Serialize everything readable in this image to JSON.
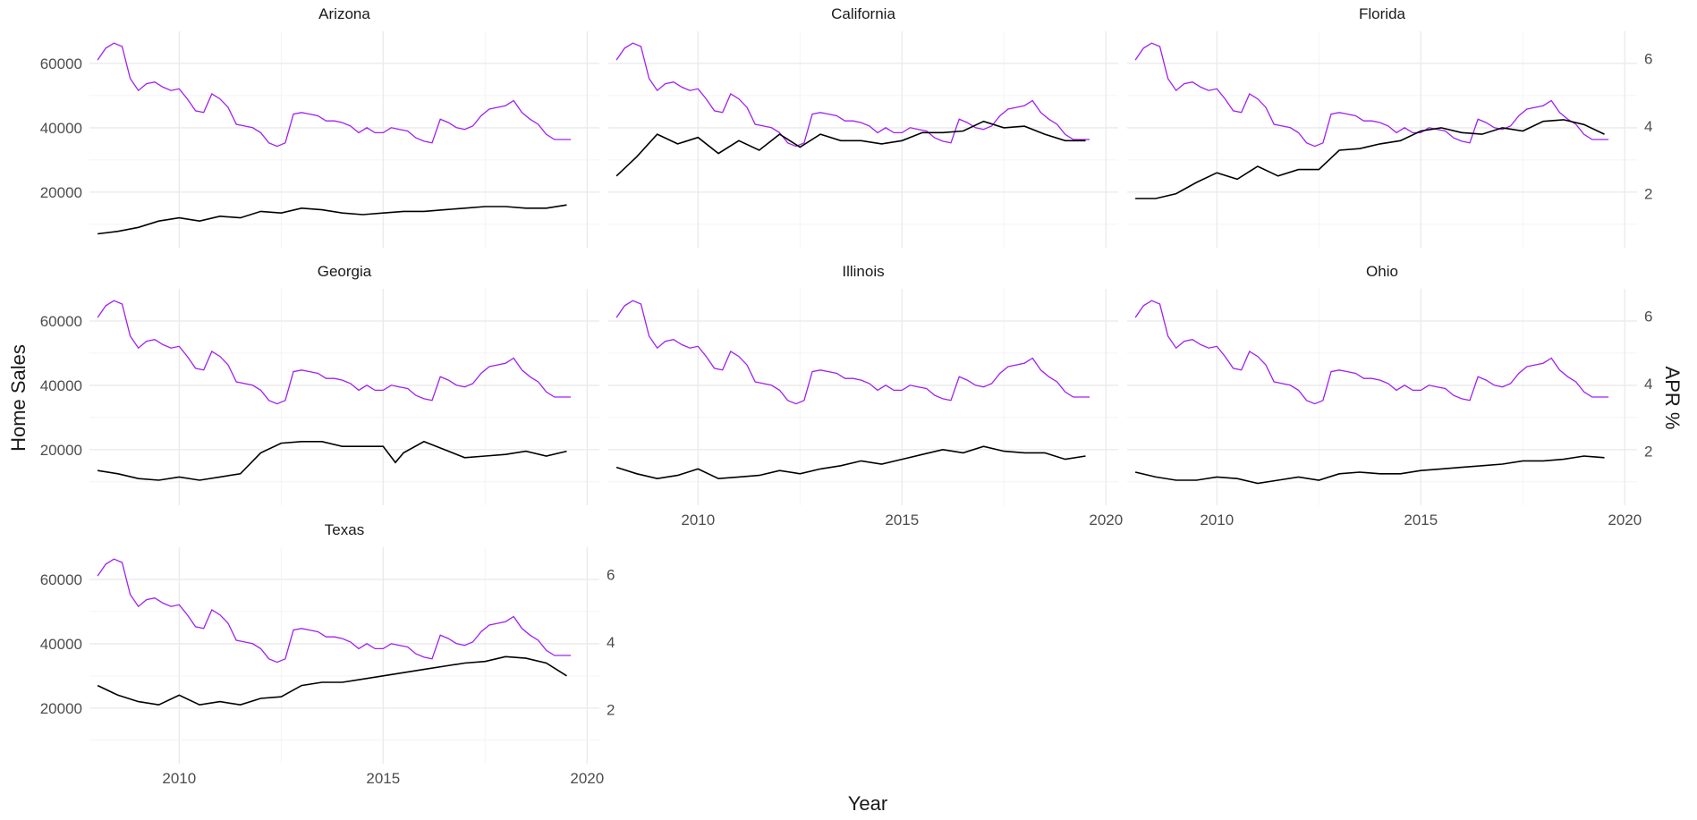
{
  "chart_data": {
    "type": "line",
    "facet_order": [
      "Arizona",
      "California",
      "Florida",
      "Georgia",
      "Illinois",
      "Ohio",
      "Texas"
    ],
    "xlabel": "Year",
    "ylabel": "Home Sales",
    "y2label": "APR %",
    "xlim": [
      2007.8,
      2020.3
    ],
    "ylim": [
      2700,
      70000
    ],
    "y2lim": [
      0.4,
      6.8
    ],
    "x_ticks": [
      2010,
      2015,
      2020
    ],
    "y_ticks": [
      20000,
      40000,
      60000
    ],
    "y_tick_labels": [
      "20000",
      "40000",
      "60000"
    ],
    "y2_ticks": [
      2,
      4,
      6
    ],
    "y2_tick_labels": [
      "2",
      "4",
      "6"
    ],
    "grid": true,
    "colors": {
      "home_sales": "#000000",
      "apr": "#a020f0"
    },
    "apr_series": {
      "x": [
        2008.0,
        2008.2,
        2008.4,
        2008.6,
        2008.8,
        2009.0,
        2009.2,
        2009.4,
        2009.6,
        2009.8,
        2010.0,
        2010.2,
        2010.4,
        2010.6,
        2010.8,
        2011.0,
        2011.2,
        2011.4,
        2011.6,
        2011.8,
        2012.0,
        2012.2,
        2012.4,
        2012.6,
        2012.8,
        2013.0,
        2013.2,
        2013.4,
        2013.6,
        2013.8,
        2014.0,
        2014.2,
        2014.4,
        2014.6,
        2014.8,
        2015.0,
        2015.2,
        2015.4,
        2015.6,
        2015.8,
        2016.0,
        2016.2,
        2016.4,
        2016.6,
        2016.8,
        2017.0,
        2017.2,
        2017.4,
        2017.6,
        2017.8,
        2018.0,
        2018.2,
        2018.4,
        2018.6,
        2018.8,
        2019.0,
        2019.2,
        2019.4,
        2019.6
      ],
      "values": [
        5.95,
        6.3,
        6.45,
        6.35,
        5.4,
        5.05,
        5.25,
        5.3,
        5.15,
        5.05,
        5.1,
        4.8,
        4.45,
        4.4,
        4.95,
        4.8,
        4.55,
        4.05,
        4.0,
        3.95,
        3.8,
        3.5,
        3.4,
        3.5,
        4.35,
        4.4,
        4.35,
        4.3,
        4.15,
        4.15,
        4.1,
        4.0,
        3.8,
        3.95,
        3.8,
        3.8,
        3.95,
        3.9,
        3.85,
        3.65,
        3.55,
        3.5,
        4.2,
        4.1,
        3.95,
        3.9,
        4.0,
        4.3,
        4.5,
        4.55,
        4.6,
        4.75,
        4.4,
        4.2,
        4.05,
        3.75,
        3.6,
        3.6,
        3.6
      ]
    },
    "panels": [
      {
        "name": "Arizona",
        "x": [
          2008.0,
          2008.5,
          2009.0,
          2009.5,
          2010.0,
          2010.5,
          2011.0,
          2011.5,
          2012.0,
          2012.5,
          2013.0,
          2013.5,
          2014.0,
          2014.5,
          2015.0,
          2015.5,
          2016.0,
          2016.5,
          2017.0,
          2017.5,
          2018.0,
          2018.5,
          2019.0,
          2019.5
        ],
        "values": [
          7000,
          7800,
          9000,
          11000,
          12000,
          11000,
          12500,
          12000,
          14000,
          13500,
          15000,
          14500,
          13500,
          13000,
          13500,
          14000,
          14000,
          14500,
          15000,
          15500,
          15500,
          15000,
          15000,
          16000
        ]
      },
      {
        "name": "California",
        "x": [
          2008.0,
          2008.5,
          2009.0,
          2009.5,
          2010.0,
          2010.5,
          2011.0,
          2011.5,
          2012.0,
          2012.5,
          2013.0,
          2013.5,
          2014.0,
          2014.5,
          2015.0,
          2015.5,
          2016.0,
          2016.5,
          2017.0,
          2017.5,
          2018.0,
          2018.5,
          2019.0,
          2019.5
        ],
        "values": [
          25000,
          31000,
          38000,
          35000,
          37000,
          32000,
          36000,
          33000,
          38000,
          34000,
          38000,
          36000,
          36000,
          35000,
          36000,
          38500,
          38500,
          39000,
          42000,
          40000,
          40500,
          38000,
          36000,
          36000
        ],
        "y_labels": false
      },
      {
        "name": "Florida",
        "x": [
          2008.0,
          2008.5,
          2009.0,
          2009.5,
          2010.0,
          2010.5,
          2011.0,
          2011.5,
          2012.0,
          2012.5,
          2013.0,
          2013.5,
          2014.0,
          2014.5,
          2015.0,
          2015.5,
          2016.0,
          2016.5,
          2017.0,
          2017.5,
          2018.0,
          2018.5,
          2019.0,
          2019.5
        ],
        "values": [
          18000,
          18000,
          19500,
          23000,
          26000,
          24000,
          28000,
          25000,
          27000,
          27000,
          33000,
          33500,
          35000,
          36000,
          39000,
          40000,
          38500,
          38000,
          40000,
          39000,
          42000,
          42500,
          41000,
          38000
        ],
        "y_labels": false,
        "y2_labels": true
      },
      {
        "name": "Georgia",
        "x": [
          2008.0,
          2008.5,
          2009.0,
          2009.5,
          2010.0,
          2010.5,
          2011.0,
          2011.5,
          2012.0,
          2012.5,
          2013.0,
          2013.5,
          2014.0,
          2014.5,
          2015.0,
          2015.3,
          2015.5,
          2016.0,
          2016.5,
          2017.0,
          2017.5,
          2018.0,
          2018.5,
          2019.0,
          2019.5
        ],
        "values": [
          13500,
          12500,
          11000,
          10500,
          11500,
          10500,
          11500,
          12500,
          19000,
          22000,
          22500,
          22500,
          21000,
          21000,
          21000,
          16000,
          19000,
          22500,
          20000,
          17500,
          18000,
          18500,
          19500,
          18000,
          19500
        ]
      },
      {
        "name": "Illinois",
        "x": [
          2008.0,
          2008.5,
          2009.0,
          2009.5,
          2010.0,
          2010.5,
          2011.0,
          2011.5,
          2012.0,
          2012.5,
          2013.0,
          2013.5,
          2014.0,
          2014.5,
          2015.0,
          2015.5,
          2016.0,
          2016.5,
          2017.0,
          2017.5,
          2018.0,
          2018.5,
          2019.0,
          2019.5
        ],
        "values": [
          14500,
          12500,
          11000,
          12000,
          14000,
          11000,
          11500,
          12000,
          13500,
          12500,
          14000,
          15000,
          16500,
          15500,
          17000,
          18500,
          20000,
          19000,
          21000,
          19500,
          19000,
          19000,
          17000,
          18000
        ],
        "y_labels": false,
        "x_labels": true
      },
      {
        "name": "Ohio",
        "x": [
          2008.0,
          2008.5,
          2009.0,
          2009.5,
          2010.0,
          2010.5,
          2011.0,
          2011.5,
          2012.0,
          2012.5,
          2013.0,
          2013.5,
          2014.0,
          2014.5,
          2015.0,
          2015.5,
          2016.0,
          2016.5,
          2017.0,
          2017.5,
          2018.0,
          2018.5,
          2019.0,
          2019.5
        ],
        "values": [
          13000,
          11500,
          10500,
          10500,
          11500,
          11000,
          9500,
          10500,
          11500,
          10500,
          12500,
          13000,
          12500,
          12500,
          13500,
          14000,
          14500,
          15000,
          15500,
          16500,
          16500,
          17000,
          18000,
          17500
        ],
        "y_labels": false,
        "y2_labels": true,
        "x_labels": true
      },
      {
        "name": "Texas",
        "x": [
          2008.0,
          2008.5,
          2009.0,
          2009.5,
          2010.0,
          2010.5,
          2011.0,
          2011.5,
          2012.0,
          2012.5,
          2013.0,
          2013.5,
          2014.0,
          2014.5,
          2015.0,
          2015.5,
          2016.0,
          2016.5,
          2017.0,
          2017.5,
          2018.0,
          2018.5,
          2019.0,
          2019.5
        ],
        "values": [
          27000,
          24000,
          22000,
          21000,
          24000,
          21000,
          22000,
          21000,
          23000,
          23500,
          27000,
          28000,
          28000,
          29000,
          30000,
          31000,
          32000,
          33000,
          34000,
          34500,
          36000,
          35500,
          34000,
          30000
        ],
        "y2_labels": true,
        "x_labels": true
      }
    ]
  }
}
